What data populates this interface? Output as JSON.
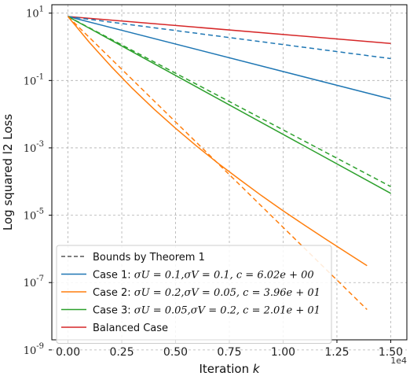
{
  "chart_data": {
    "type": "line",
    "xlabel_prefix": "Iteration ",
    "xlabel_var": "k",
    "ylabel": "Log squared l2 Loss",
    "x_multiplier": "1e4",
    "yscale": "log",
    "xlim": [
      -0.075,
      1.575
    ],
    "ylim": [
      -8.7,
      1.25
    ],
    "xticks": [
      0.0,
      0.25,
      0.5,
      0.75,
      1.0,
      1.25,
      1.5
    ],
    "xtick_labels": [
      "0.00",
      "0.25",
      "0.50",
      "0.75",
      "1.00",
      "1.25",
      "1.50"
    ],
    "yticks": [
      {
        "exp": 1,
        "label_base": "10",
        "label_exp": "1"
      },
      {
        "exp": -1,
        "label_base": "10",
        "label_exp": "-1"
      },
      {
        "exp": -3,
        "label_base": "10",
        "label_exp": "-3"
      },
      {
        "exp": -5,
        "label_base": "10",
        "label_exp": "-5"
      },
      {
        "exp": -7,
        "label_base": "10",
        "label_exp": "-7"
      },
      {
        "exp": -9,
        "label_base": "10",
        "label_exp": "-9"
      }
    ],
    "grid": true,
    "legend_position": "bottom-left",
    "series": [
      {
        "name": "Balanced Case",
        "color": "#d62728",
        "dash": false,
        "x": [
          0.0,
          1.5
        ],
        "y_log10": [
          0.9,
          0.1
        ]
      },
      {
        "name": "Case 1",
        "color": "#1f77b4",
        "dash": false,
        "x": [
          0.0,
          1.5
        ],
        "y_log10": [
          0.9,
          -1.55
        ]
      },
      {
        "color": "#1f77b4",
        "dash": true,
        "x": [
          0.0,
          1.5
        ],
        "y_log10": [
          0.9,
          -0.35
        ]
      },
      {
        "name": "Case 3",
        "color": "#2ca02c",
        "dash": false,
        "x": [
          0.0,
          1.5
        ],
        "y_log10": [
          0.9,
          -4.35
        ]
      },
      {
        "color": "#2ca02c",
        "dash": true,
        "x": [
          0.0,
          1.5
        ],
        "y_log10": [
          0.9,
          -4.15
        ]
      },
      {
        "name": "Case 2",
        "color": "#ff7f0e",
        "dash": false,
        "x": [
          0.0,
          0.1,
          0.2,
          0.3,
          0.4,
          0.5,
          0.6,
          0.7,
          0.8,
          0.9,
          1.0,
          1.1,
          1.2,
          1.3,
          1.39
        ],
        "y_log10": [
          0.9,
          0.13,
          -0.58,
          -1.24,
          -1.85,
          -2.42,
          -2.96,
          -3.47,
          -3.95,
          -4.42,
          -4.87,
          -5.3,
          -5.72,
          -6.13,
          -6.5
        ]
      },
      {
        "color": "#ff7f0e",
        "dash": true,
        "x": [
          0.0,
          1.39
        ],
        "y_log10": [
          0.9,
          -7.8
        ]
      }
    ],
    "legend": [
      {
        "kind": "dashed",
        "color": "#555555",
        "text": "Bounds by Theorem 1"
      },
      {
        "kind": "solid",
        "color": "#1f77b4",
        "prefix": "Case 1: ",
        "math": "σU = 0.1,σV = 0.1, c = 6.02e + 00"
      },
      {
        "kind": "solid",
        "color": "#ff7f0e",
        "prefix": "Case 2: ",
        "math": "σU = 0.2,σV = 0.05, c = 3.96e + 01"
      },
      {
        "kind": "solid",
        "color": "#2ca02c",
        "prefix": "Case 3: ",
        "math": "σU = 0.05,σV = 0.2, c = 2.01e + 01"
      },
      {
        "kind": "solid",
        "color": "#d62728",
        "text": "Balanced Case"
      }
    ]
  }
}
